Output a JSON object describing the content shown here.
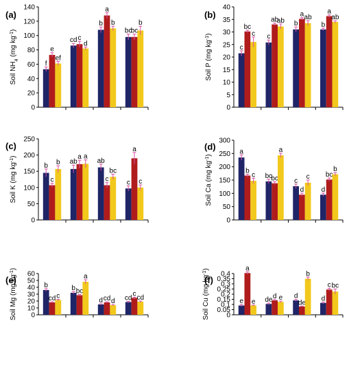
{
  "colors": {
    "s1": "#1f2566",
    "s2": "#b01c1c",
    "s3": "#f2c81c",
    "error": "#d94fa3"
  },
  "chart_data": [
    {
      "type": "bar",
      "panel": "(a)",
      "ylabel": "Soil NH4 (mg kg-1)",
      "ylabel_parts": [
        "Soil NH",
        "4",
        " (mg kg",
        "-1",
        ")"
      ],
      "ylim": [
        0,
        140
      ],
      "yticks": [
        0,
        20,
        40,
        60,
        80,
        100,
        120,
        140
      ],
      "tick_labels": [
        "0",
        "20",
        "40",
        "60",
        "80",
        "100",
        "120",
        "140"
      ],
      "series": [
        {
          "values": [
            53,
            86,
            108,
            98
          ],
          "errors": [
            3,
            3,
            4,
            4
          ],
          "letters": [
            "f",
            "cd",
            "b",
            "bc"
          ]
        },
        {
          "values": [
            73,
            88,
            128,
            98
          ],
          "errors": [
            3,
            4,
            4,
            4
          ],
          "letters": [
            "e",
            "c",
            "a",
            "bc"
          ]
        },
        {
          "values": [
            61,
            82,
            110,
            107
          ],
          "errors": [
            3,
            2,
            3,
            6
          ],
          "letters": [
            "ef",
            "d",
            "b",
            "b"
          ]
        }
      ]
    },
    {
      "type": "bar",
      "panel": "(b)",
      "ylabel": "Soil P (mg kg-1)",
      "ylabel_parts": [
        "Soil P",
        "",
        " (mg kg",
        "-1",
        ")"
      ],
      "ylim": [
        0,
        40
      ],
      "yticks": [
        0,
        5,
        10,
        15,
        20,
        25,
        30,
        35,
        40
      ],
      "tick_labels": [
        "0",
        "5",
        "10",
        "15",
        "20",
        "25",
        "30",
        "35",
        "40"
      ],
      "series": [
        {
          "values": [
            21.5,
            25.8,
            31,
            31
          ],
          "errors": [
            1,
            1,
            1,
            0.5
          ],
          "letters": [
            "c",
            "c",
            "b",
            "b"
          ]
        },
        {
          "values": [
            30.2,
            33,
            35.2,
            36.3
          ],
          "errors": [
            0.5,
            0.5,
            0.5,
            0.5
          ],
          "letters": [
            "bc",
            "ab",
            "a",
            "a"
          ]
        },
        {
          "values": [
            26,
            32.2,
            33.5,
            34
          ],
          "errors": [
            2,
            1,
            1,
            0.5
          ],
          "letters": [
            "c",
            "ab",
            "ab",
            "ab"
          ]
        }
      ]
    },
    {
      "type": "bar",
      "panel": "(c)",
      "ylabel": "Soil K (mg kg-1)",
      "ylabel_parts": [
        "Soil K",
        "",
        " (mg kg",
        "-1",
        ")"
      ],
      "ylim": [
        0,
        250
      ],
      "yticks": [
        0,
        50,
        100,
        150,
        200,
        250
      ],
      "tick_labels": [
        "0",
        "50",
        "100",
        "150",
        "200",
        "250"
      ],
      "series": [
        {
          "values": [
            145,
            157,
            162,
            97
          ],
          "errors": [
            12,
            12,
            10,
            8
          ],
          "letters": [
            "b",
            "ab",
            "ab",
            "c"
          ]
        },
        {
          "values": [
            107,
            172,
            107,
            190
          ],
          "errors": [
            6,
            12,
            8,
            18
          ],
          "letters": [
            "c",
            "a",
            "c",
            "a"
          ]
        },
        {
          "values": [
            157,
            173,
            133,
            100
          ],
          "errors": [
            10,
            12,
            8,
            8
          ],
          "letters": [
            "b",
            "a",
            "bc",
            "c"
          ]
        }
      ]
    },
    {
      "type": "bar",
      "panel": "(d)",
      "ylabel": "Soil Ca (mg kg-1)",
      "ylabel_parts": [
        "Soil Ca",
        "",
        " (mg kg",
        "-1",
        ")"
      ],
      "ylim": [
        0,
        300
      ],
      "yticks": [
        0,
        50,
        100,
        150,
        200,
        250,
        300
      ],
      "tick_labels": [
        "0",
        "50",
        "100",
        "150",
        "200",
        "250",
        "300"
      ],
      "series": [
        {
          "values": [
            235,
            145,
            127,
            95
          ],
          "errors": [
            10,
            8,
            8,
            6
          ],
          "letters": [
            "a",
            "bc",
            "c",
            "d"
          ]
        },
        {
          "values": [
            167,
            138,
            95,
            152
          ],
          "errors": [
            5,
            6,
            6,
            6
          ],
          "letters": [
            "b",
            "bc",
            "d",
            "bc"
          ]
        },
        {
          "values": [
            147,
            243,
            140,
            172
          ],
          "errors": [
            10,
            8,
            10,
            6
          ],
          "letters": [
            "c",
            "a",
            "c",
            "b"
          ]
        }
      ]
    },
    {
      "type": "bar",
      "panel": "(e)",
      "ylabel": "Soil Mg (mg kg-1)",
      "ylabel_parts": [
        "Soil Mg",
        "",
        " (mg kg",
        "-1",
        ")"
      ],
      "ylim": [
        0,
        60
      ],
      "yticks": [
        0,
        10,
        20,
        30,
        40,
        50,
        60
      ],
      "tick_labels": [
        "0",
        "10",
        "20",
        "30",
        "40",
        "50",
        "60"
      ],
      "series": [
        {
          "values": [
            36,
            32,
            15,
            18.5
          ],
          "errors": [
            2,
            2,
            1,
            1
          ],
          "letters": [
            "b",
            "b",
            "d",
            "cd"
          ]
        },
        {
          "values": [
            18,
            28.5,
            18,
            24.5
          ],
          "errors": [
            1,
            1,
            1,
            1
          ],
          "letters": [
            "cd",
            "bc",
            "cd",
            "c"
          ]
        },
        {
          "values": [
            21.5,
            48,
            14,
            19
          ],
          "errors": [
            1,
            3,
            1,
            1
          ],
          "letters": [
            "c",
            "a",
            "d",
            "cd"
          ]
        }
      ]
    },
    {
      "type": "bar",
      "panel": "(f)",
      "ylabel": "Soil Cu (mg kg-1)",
      "ylabel_parts": [
        "Soil Cu",
        "",
        " (mg kg",
        "-1",
        ")"
      ],
      "ylim": [
        0,
        0.4
      ],
      "yticks": [
        0,
        0.05,
        0.1,
        0.15,
        0.2,
        0.25,
        0.3,
        0.35,
        0.4
      ],
      "tick_labels": [
        "0",
        "0.05",
        "0.1",
        "0.15",
        "0.2",
        "0.25",
        "0.3",
        "0.35",
        "0.4"
      ],
      "series": [
        {
          "values": [
            0.09,
            0.105,
            0.14,
            0.115
          ],
          "errors": [
            0.01,
            0.008,
            0.01,
            0.008
          ],
          "letters": [
            "e",
            "de",
            "d",
            "d"
          ]
        },
        {
          "values": [
            0.405,
            0.14,
            0.08,
            0.245
          ],
          "errors": [
            0.012,
            0.008,
            0.005,
            0.012
          ],
          "letters": [
            "a",
            "d",
            "de",
            "c"
          ]
        },
        {
          "values": [
            0.09,
            0.125,
            0.35,
            0.225
          ],
          "errors": [
            0.005,
            0.008,
            0.015,
            0.025
          ],
          "letters": [
            "e",
            "e",
            "b",
            "bc"
          ]
        }
      ]
    }
  ]
}
